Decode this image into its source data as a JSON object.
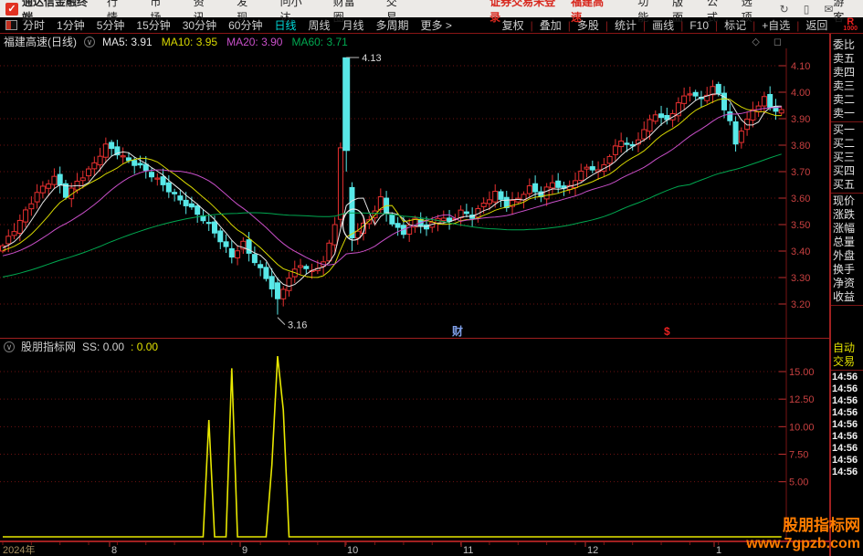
{
  "topbar": {
    "app_title": "通达信金融终端",
    "menus": [
      "行情",
      "市场",
      "资讯",
      "发现",
      "问小达",
      "财富圈",
      "交易"
    ],
    "login_status": "证券交易未登录",
    "stock_name": "福建高速",
    "right_menus": [
      "功能",
      "版面",
      "公式",
      "选项"
    ],
    "icons": [
      {
        "name": "refresh-icon",
        "glyph": "↻"
      },
      {
        "name": "mobile-icon",
        "glyph": "▯"
      },
      {
        "name": "mail-icon",
        "glyph": "✉"
      }
    ],
    "user": "游客"
  },
  "toolbar": {
    "periods": [
      "分时",
      "1分钟",
      "5分钟",
      "15分钟",
      "30分钟",
      "60分钟",
      "日线",
      "周线",
      "月线",
      "多周期",
      "更多 >"
    ],
    "active_period": "日线",
    "right_items": [
      "复权",
      "叠加",
      "多股",
      "统计",
      "画线",
      "F10",
      "标记",
      "+自选",
      "返回"
    ],
    "corner_r": "R",
    "corner_n": "1000"
  },
  "chart": {
    "title": "福建高速(日线)",
    "ma_labels": [
      {
        "text": "MA5: 3.91",
        "color": "#e6e6e6"
      },
      {
        "text": "MA10: 3.95",
        "color": "#d8d800"
      },
      {
        "text": "MA20: 3.90",
        "color": "#c84fc8"
      },
      {
        "text": "MA60: 3.71",
        "color": "#00a850"
      }
    ],
    "win_icons": "◇ ◻",
    "event_markers": [
      {
        "text": "财",
        "x": 495,
        "color": "#7f9fe8"
      },
      {
        "text": "$",
        "x": 727,
        "color": "#e82020"
      }
    ],
    "price_ticks": [
      "4.10",
      "4.00",
      "3.90",
      "3.80",
      "3.70",
      "3.60",
      "3.50",
      "3.40",
      "3.30",
      "3.20"
    ],
    "annotation_high": "4.13",
    "annotation_low": "3.16"
  },
  "indicator": {
    "title": "股朋指标网",
    "ss_label": "SS: 0.00",
    "ss_value": ": 0.00",
    "value_ticks": [
      "15.00",
      "12.50",
      "10.00",
      "7.50",
      "5.00"
    ]
  },
  "xaxis": {
    "year_label": "2024年",
    "months": [
      {
        "label": "8",
        "x": 120
      },
      {
        "label": "9",
        "x": 263
      },
      {
        "label": "10",
        "x": 378
      },
      {
        "label": "11",
        "x": 505
      },
      {
        "label": "12",
        "x": 641
      },
      {
        "label": "1",
        "x": 782
      }
    ]
  },
  "sidebar": {
    "quote_rows": [
      "委比",
      "卖五",
      "卖四",
      "卖三",
      "卖二",
      "卖一",
      "买一",
      "买二",
      "买三",
      "买四",
      "买五",
      "现价",
      "涨跌",
      "涨幅",
      "总量",
      "外盘",
      "换手",
      "净资",
      "收益"
    ],
    "dividers_after": [
      "卖一",
      "买五",
      "收益"
    ],
    "auto_rows": [
      "自动",
      "交易"
    ],
    "tick_times": [
      "14:56",
      "14:56",
      "14:56",
      "14:56",
      "14:56",
      "14:56",
      "14:56",
      "14:56",
      "14:56"
    ]
  },
  "watermark": {
    "line1": "股朋指标网",
    "line2": "www.7gpzb.com"
  },
  "chart_data": {
    "type": "candlestick+line",
    "title": "福建高速 日线 2024-07 ~ 2025-01",
    "price_axis": {
      "top": 4.1,
      "step": 0.1,
      "ticks": [
        4.1,
        4.0,
        3.9,
        3.8,
        3.7,
        3.6,
        3.5,
        3.4,
        3.3,
        3.2
      ],
      "high_annotation": 4.13,
      "low_annotation": 3.16
    },
    "candles": {
      "count": 137,
      "x0": 3,
      "dx": 6.27,
      "close_anchors": [
        [
          0,
          3.42
        ],
        [
          2,
          3.48
        ],
        [
          4,
          3.55
        ],
        [
          6,
          3.62
        ],
        [
          9,
          3.68
        ],
        [
          11,
          3.61
        ],
        [
          13,
          3.66
        ],
        [
          16,
          3.73
        ],
        [
          18,
          3.8
        ],
        [
          20,
          3.77
        ],
        [
          22,
          3.74
        ],
        [
          24,
          3.72
        ],
        [
          27,
          3.67
        ],
        [
          30,
          3.61
        ],
        [
          33,
          3.56
        ],
        [
          36,
          3.5
        ],
        [
          38,
          3.44
        ],
        [
          40,
          3.38
        ],
        [
          42,
          3.43
        ],
        [
          44,
          3.36
        ],
        [
          46,
          3.3
        ],
        [
          48,
          3.22
        ],
        [
          50,
          3.3
        ],
        [
          52,
          3.35
        ],
        [
          54,
          3.32
        ],
        [
          56,
          3.36
        ],
        [
          58,
          3.5
        ],
        [
          59,
          3.79
        ],
        [
          60,
          3.78
        ],
        [
          61,
          3.45
        ],
        [
          63,
          3.5
        ],
        [
          65,
          3.55
        ],
        [
          66,
          3.6
        ],
        [
          68,
          3.5
        ],
        [
          70,
          3.47
        ],
        [
          72,
          3.52
        ],
        [
          74,
          3.48
        ],
        [
          76,
          3.53
        ],
        [
          78,
          3.51
        ],
        [
          80,
          3.55
        ],
        [
          82,
          3.53
        ],
        [
          84,
          3.58
        ],
        [
          86,
          3.62
        ],
        [
          88,
          3.57
        ],
        [
          90,
          3.6
        ],
        [
          92,
          3.64
        ],
        [
          94,
          3.61
        ],
        [
          96,
          3.66
        ],
        [
          98,
          3.63
        ],
        [
          100,
          3.67
        ],
        [
          102,
          3.72
        ],
        [
          104,
          3.7
        ],
        [
          106,
          3.76
        ],
        [
          108,
          3.82
        ],
        [
          110,
          3.79
        ],
        [
          112,
          3.86
        ],
        [
          114,
          3.92
        ],
        [
          116,
          3.89
        ],
        [
          118,
          3.96
        ],
        [
          120,
          4.0
        ],
        [
          122,
          3.97
        ],
        [
          124,
          4.02
        ],
        [
          125,
          3.99
        ],
        [
          127,
          3.89
        ],
        [
          128,
          3.8
        ],
        [
          129,
          3.86
        ],
        [
          131,
          3.93
        ],
        [
          133,
          3.98
        ],
        [
          134,
          3.94
        ],
        [
          136,
          3.93
        ]
      ],
      "specials": {
        "48": {
          "o": 3.28,
          "h": 3.3,
          "l": 3.16,
          "c": 3.22
        },
        "59": {
          "o": 3.52,
          "h": 3.81,
          "l": 3.49,
          "c": 3.79
        },
        "60": {
          "o": 4.13,
          "h": 4.13,
          "l": 3.7,
          "c": 3.78,
          "w": 7
        },
        "61": {
          "o": 3.64,
          "h": 3.66,
          "l": 3.4,
          "c": 3.45
        }
      },
      "up_color": "#e83030",
      "down_color": "#58e8e8"
    },
    "ma_series": [
      {
        "name": "MA5",
        "window": 5,
        "color": "#e6e6e6"
      },
      {
        "name": "MA10",
        "window": 10,
        "color": "#d8d800"
      },
      {
        "name": "MA20",
        "window": 20,
        "color": "#c84fc8"
      },
      {
        "name": "MA60",
        "window": 60,
        "color": "#00a850"
      }
    ],
    "ss_indicator": {
      "name": "SS",
      "color": "#e8e800",
      "baseline": 0,
      "ylim": [
        0,
        17
      ],
      "grid_values": [
        15,
        12.5,
        10,
        7.5,
        5
      ],
      "spikes": {
        "36": 10.6,
        "40": 15.3,
        "47": 6.5,
        "48": 16.4,
        "49": 11.5
      }
    },
    "signal_circle_index": 61
  }
}
